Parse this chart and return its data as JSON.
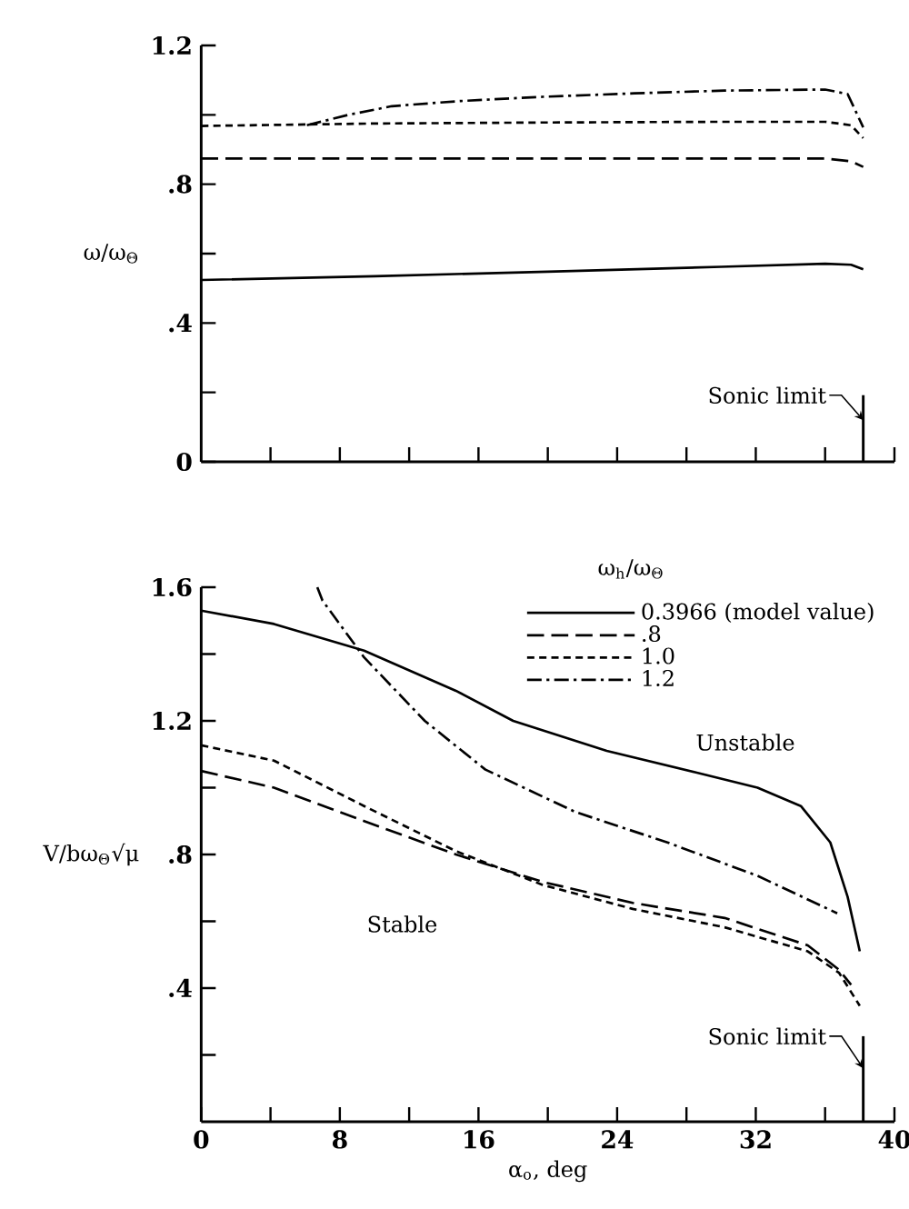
{
  "chart_data": [
    {
      "type": "line",
      "ylabel": "ω/ω$_{Θ}$",
      "xlim": [
        0,
        40
      ],
      "ylim": [
        0,
        1.2
      ],
      "xticks": [
        {
          "value": 4,
          "label": null
        },
        {
          "value": 8,
          "label": null
        },
        {
          "value": 12,
          "label": null
        },
        {
          "value": 16,
          "label": null
        },
        {
          "value": 20,
          "label": null
        },
        {
          "value": 24,
          "label": null
        },
        {
          "value": 28,
          "label": null
        },
        {
          "value": 32,
          "label": null
        },
        {
          "value": 36,
          "label": null
        },
        {
          "value": 40,
          "label": null
        }
      ],
      "yticks": [
        0,
        {
          "value": 0.2,
          "label": null
        },
        {
          "value": 0.4,
          "label": ".4"
        },
        {
          "value": 0.6,
          "label": null
        },
        {
          "value": 0.8,
          "label": ".8"
        },
        {
          "value": 1.0,
          "label": null
        },
        1.2
      ],
      "tick_labels": "y",
      "series": [
        {
          "color": "#000000",
          "line_style": "solid",
          "x": [
            0,
            10,
            20,
            30,
            36,
            37.5,
            38.2
          ],
          "values": [
            0.524,
            0.535,
            0.548,
            0.562,
            0.571,
            0.568,
            0.555
          ]
        },
        {
          "color": "#000000",
          "line_style": "long dashed",
          "x": [
            0,
            10,
            20,
            30,
            36,
            37.5,
            38.2
          ],
          "values": [
            0.874,
            0.874,
            0.874,
            0.874,
            0.874,
            0.866,
            0.85
          ]
        },
        {
          "color": "#000000",
          "line_style": "dashed",
          "x": [
            0,
            10,
            20,
            30,
            36,
            37.5,
            38.2
          ],
          "values": [
            0.968,
            0.975,
            0.978,
            0.98,
            0.98,
            0.97,
            0.933
          ]
        },
        {
          "color": "#000000",
          "line_style": "dash dot",
          "x": [
            6.1,
            8.5,
            11,
            15,
            19.7,
            25,
            30.2,
            36,
            37.3,
            38.2
          ],
          "values": [
            0.97,
            1.0,
            1.025,
            1.04,
            1.052,
            1.062,
            1.07,
            1.073,
            1.06,
            0.964
          ]
        }
      ],
      "ref_lines": [
        {
          "axis": "x",
          "value": 38.2,
          "label": "Sonic limit"
        }
      ]
    },
    {
      "type": "line",
      "xlabel": "α$_{o}$, deg",
      "ylabel": "V/bω$_{Θ}$√μ",
      "legend_title": "ω$_{h}$/ω$_{Θ}$",
      "legend": "top right",
      "xlim": [
        0,
        40
      ],
      "ylim": [
        0,
        1.6
      ],
      "xticks": [
        0,
        {
          "value": 4,
          "label": null
        },
        8,
        {
          "value": 12,
          "label": null
        },
        16,
        {
          "value": 20,
          "label": null
        },
        24,
        {
          "value": 28,
          "label": null
        },
        32,
        {
          "value": 36,
          "label": null
        },
        40
      ],
      "yticks": [
        {
          "value": 0.2,
          "label": null
        },
        {
          "value": 0.4,
          "label": ".4"
        },
        {
          "value": 0.6,
          "label": null
        },
        {
          "value": 0.8,
          "label": ".8"
        },
        {
          "value": 1.0,
          "label": null
        },
        1.2,
        {
          "value": 1.4,
          "label": null
        },
        1.6
      ],
      "series": [
        {
          "name": "0.3966 (model value)",
          "color": "#000000",
          "line_style": "solid",
          "x": [
            0,
            4.2,
            9.4,
            14.7,
            18.0,
            23.4,
            28.6,
            32.1,
            34.6,
            36.3,
            37.3,
            38.0
          ],
          "values": [
            1.53,
            1.49,
            1.41,
            1.29,
            1.2,
            1.11,
            1.045,
            1.0,
            0.945,
            0.836,
            0.673,
            0.51
          ]
        },
        {
          "name": ".8",
          "color": "#000000",
          "line_style": "long dashed",
          "x": [
            0,
            4.2,
            9.4,
            14.7,
            19.7,
            24.9,
            30.2,
            35.0,
            36.8,
            37.5
          ],
          "values": [
            1.05,
            1.0,
            0.9,
            0.8,
            0.718,
            0.655,
            0.61,
            0.528,
            0.455,
            0.41
          ]
        },
        {
          "name": "1.0",
          "color": "#000000",
          "line_style": "dashed",
          "x": [
            0,
            4.2,
            9.4,
            14.7,
            19.7,
            24.9,
            30.2,
            35.0,
            36.8,
            38.0
          ],
          "values": [
            1.127,
            1.081,
            0.945,
            0.81,
            0.709,
            0.637,
            0.582,
            0.51,
            0.446,
            0.347
          ]
        },
        {
          "name": "1.2",
          "color": "#000000",
          "line_style": "dash dot",
          "x": [
            6.7,
            7.0,
            9.4,
            12.9,
            16.4,
            21.6,
            26.9,
            32.1,
            36.7
          ],
          "values": [
            1.6,
            1.56,
            1.39,
            1.2,
            1.054,
            0.927,
            0.836,
            0.736,
            0.624
          ]
        }
      ],
      "annotations": [
        "Unstable",
        "Stable"
      ],
      "ref_lines": [
        {
          "axis": "x",
          "value": 38.2,
          "label": "Sonic limit"
        }
      ]
    }
  ]
}
